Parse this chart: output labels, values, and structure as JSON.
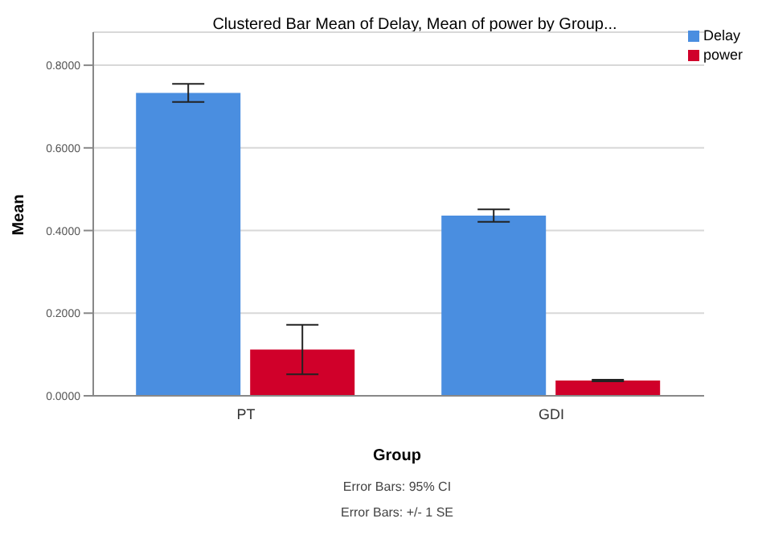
{
  "chart_data": {
    "type": "bar",
    "title": "Clustered Bar Mean of Delay, Mean of power by Group...",
    "xlabel": "Group",
    "ylabel": "Mean",
    "categories": [
      "PT",
      "GDI"
    ],
    "series": [
      {
        "name": "Delay",
        "color": "#4a8ee0",
        "values": [
          0.733,
          0.436
        ],
        "errors": [
          0.022,
          0.015
        ]
      },
      {
        "name": "power",
        "color": "#d0002a",
        "values": [
          0.112,
          0.037
        ],
        "errors": [
          0.06,
          0.002
        ]
      }
    ],
    "ylim": [
      0,
      0.88
    ],
    "yticks": [
      {
        "value": 0,
        "label": "0.0000"
      },
      {
        "value": 0.2,
        "label": "0.2000"
      },
      {
        "value": 0.4,
        "label": "0.4000"
      },
      {
        "value": 0.6,
        "label": "0.6000"
      },
      {
        "value": 0.8,
        "label": "0.8000"
      }
    ],
    "grid": "y",
    "legend": "top right",
    "annotations": [
      "Error Bars: 95% CI",
      "Error Bars: +/- 1 SE"
    ]
  }
}
